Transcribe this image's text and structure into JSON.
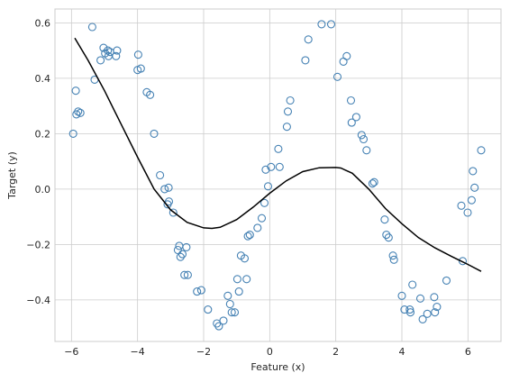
{
  "chart_data": {
    "type": "scatter",
    "title": "",
    "xlabel": "Feature (x)",
    "ylabel": "Target (y)",
    "xlim": [
      -6.5,
      7.0
    ],
    "ylim": [
      -0.55,
      0.65
    ],
    "xticks": [
      -6,
      -4,
      -2,
      0,
      2,
      4,
      6
    ],
    "yticks": [
      -0.4,
      -0.2,
      0.0,
      0.2,
      0.4,
      0.6
    ],
    "xtick_labels": [
      "−6",
      "−4",
      "−2",
      "0",
      "2",
      "4",
      "6"
    ],
    "ytick_labels": [
      "−0.4",
      "−0.2",
      "0.0",
      "0.2",
      "0.4",
      "0.6"
    ],
    "grid": true,
    "colors": {
      "points": "#4682b4",
      "curve": "#000000",
      "grid": "#cccccc"
    },
    "series": [
      {
        "kind": "scatter",
        "marker": "open-circle",
        "x": [
          -5.95,
          -5.87,
          -5.85,
          -5.8,
          -5.73,
          -5.37,
          -5.3,
          -5.12,
          -5.03,
          -4.98,
          -4.9,
          -4.88,
          -4.83,
          -4.65,
          -4.62,
          -4.0,
          -3.98,
          -3.9,
          -3.72,
          -3.62,
          -3.5,
          -3.32,
          -3.18,
          -3.09,
          -3.06,
          -3.05,
          -2.92,
          -2.78,
          -2.74,
          -2.7,
          -2.64,
          -2.58,
          -2.52,
          -2.48,
          -2.2,
          -2.07,
          -1.87,
          -1.6,
          -1.54,
          -1.4,
          -1.27,
          -1.2,
          -1.15,
          -1.06,
          -0.98,
          -0.93,
          -0.87,
          -0.76,
          -0.7,
          -0.66,
          -0.6,
          -0.37,
          -0.24,
          -0.16,
          -0.12,
          -0.05,
          0.04,
          0.26,
          0.3,
          0.52,
          0.55,
          0.62,
          1.08,
          1.17,
          1.57,
          1.86,
          2.05,
          2.23,
          2.33,
          2.46,
          2.48,
          2.62,
          2.78,
          2.84,
          2.93,
          3.11,
          3.16,
          3.48,
          3.53,
          3.6,
          3.73,
          3.76,
          4.0,
          4.08,
          4.24,
          4.26,
          4.32,
          4.56,
          4.63,
          4.77,
          4.98,
          5.0,
          5.06,
          5.35,
          5.8,
          5.84,
          5.99,
          6.11,
          6.15,
          6.2,
          6.4
        ],
        "y": [
          0.2,
          0.355,
          0.27,
          0.28,
          0.275,
          0.585,
          0.395,
          0.465,
          0.51,
          0.49,
          0.5,
          0.48,
          0.495,
          0.48,
          0.5,
          0.43,
          0.485,
          0.435,
          0.35,
          0.34,
          0.2,
          0.05,
          0.0,
          -0.055,
          0.005,
          -0.045,
          -0.085,
          -0.22,
          -0.205,
          -0.245,
          -0.235,
          -0.31,
          -0.21,
          -0.31,
          -0.37,
          -0.365,
          -0.435,
          -0.485,
          -0.495,
          -0.475,
          -0.385,
          -0.415,
          -0.445,
          -0.445,
          -0.325,
          -0.37,
          -0.24,
          -0.25,
          -0.325,
          -0.17,
          -0.165,
          -0.14,
          -0.105,
          -0.05,
          0.07,
          0.01,
          0.08,
          0.145,
          0.08,
          0.225,
          0.28,
          0.32,
          0.465,
          0.54,
          0.595,
          0.595,
          0.405,
          0.46,
          0.48,
          0.32,
          0.24,
          0.26,
          0.195,
          0.18,
          0.14,
          0.02,
          0.025,
          -0.11,
          -0.165,
          -0.175,
          -0.24,
          -0.255,
          -0.385,
          -0.435,
          -0.435,
          -0.445,
          -0.345,
          -0.395,
          -0.47,
          -0.45,
          -0.39,
          -0.445,
          -0.425,
          -0.33,
          -0.06,
          -0.26,
          -0.085,
          -0.04,
          0.065,
          0.005,
          0.14
        ]
      },
      {
        "kind": "line",
        "x": [
          -5.9,
          -5.5,
          -5.0,
          -4.5,
          -4.0,
          -3.5,
          -3.0,
          -2.5,
          -2.0,
          -1.75,
          -1.5,
          -1.0,
          -0.5,
          0.0,
          0.5,
          1.0,
          1.5,
          2.0,
          2.15,
          2.5,
          3.0,
          3.5,
          4.0,
          4.5,
          5.0,
          5.5,
          6.0,
          6.4
        ],
        "y": [
          0.545,
          0.465,
          0.355,
          0.235,
          0.115,
          0.0,
          -0.075,
          -0.12,
          -0.14,
          -0.142,
          -0.138,
          -0.11,
          -0.065,
          -0.015,
          0.03,
          0.063,
          0.077,
          0.078,
          0.076,
          0.057,
          0.0,
          -0.07,
          -0.125,
          -0.175,
          -0.212,
          -0.243,
          -0.272,
          -0.297
        ]
      }
    ]
  }
}
